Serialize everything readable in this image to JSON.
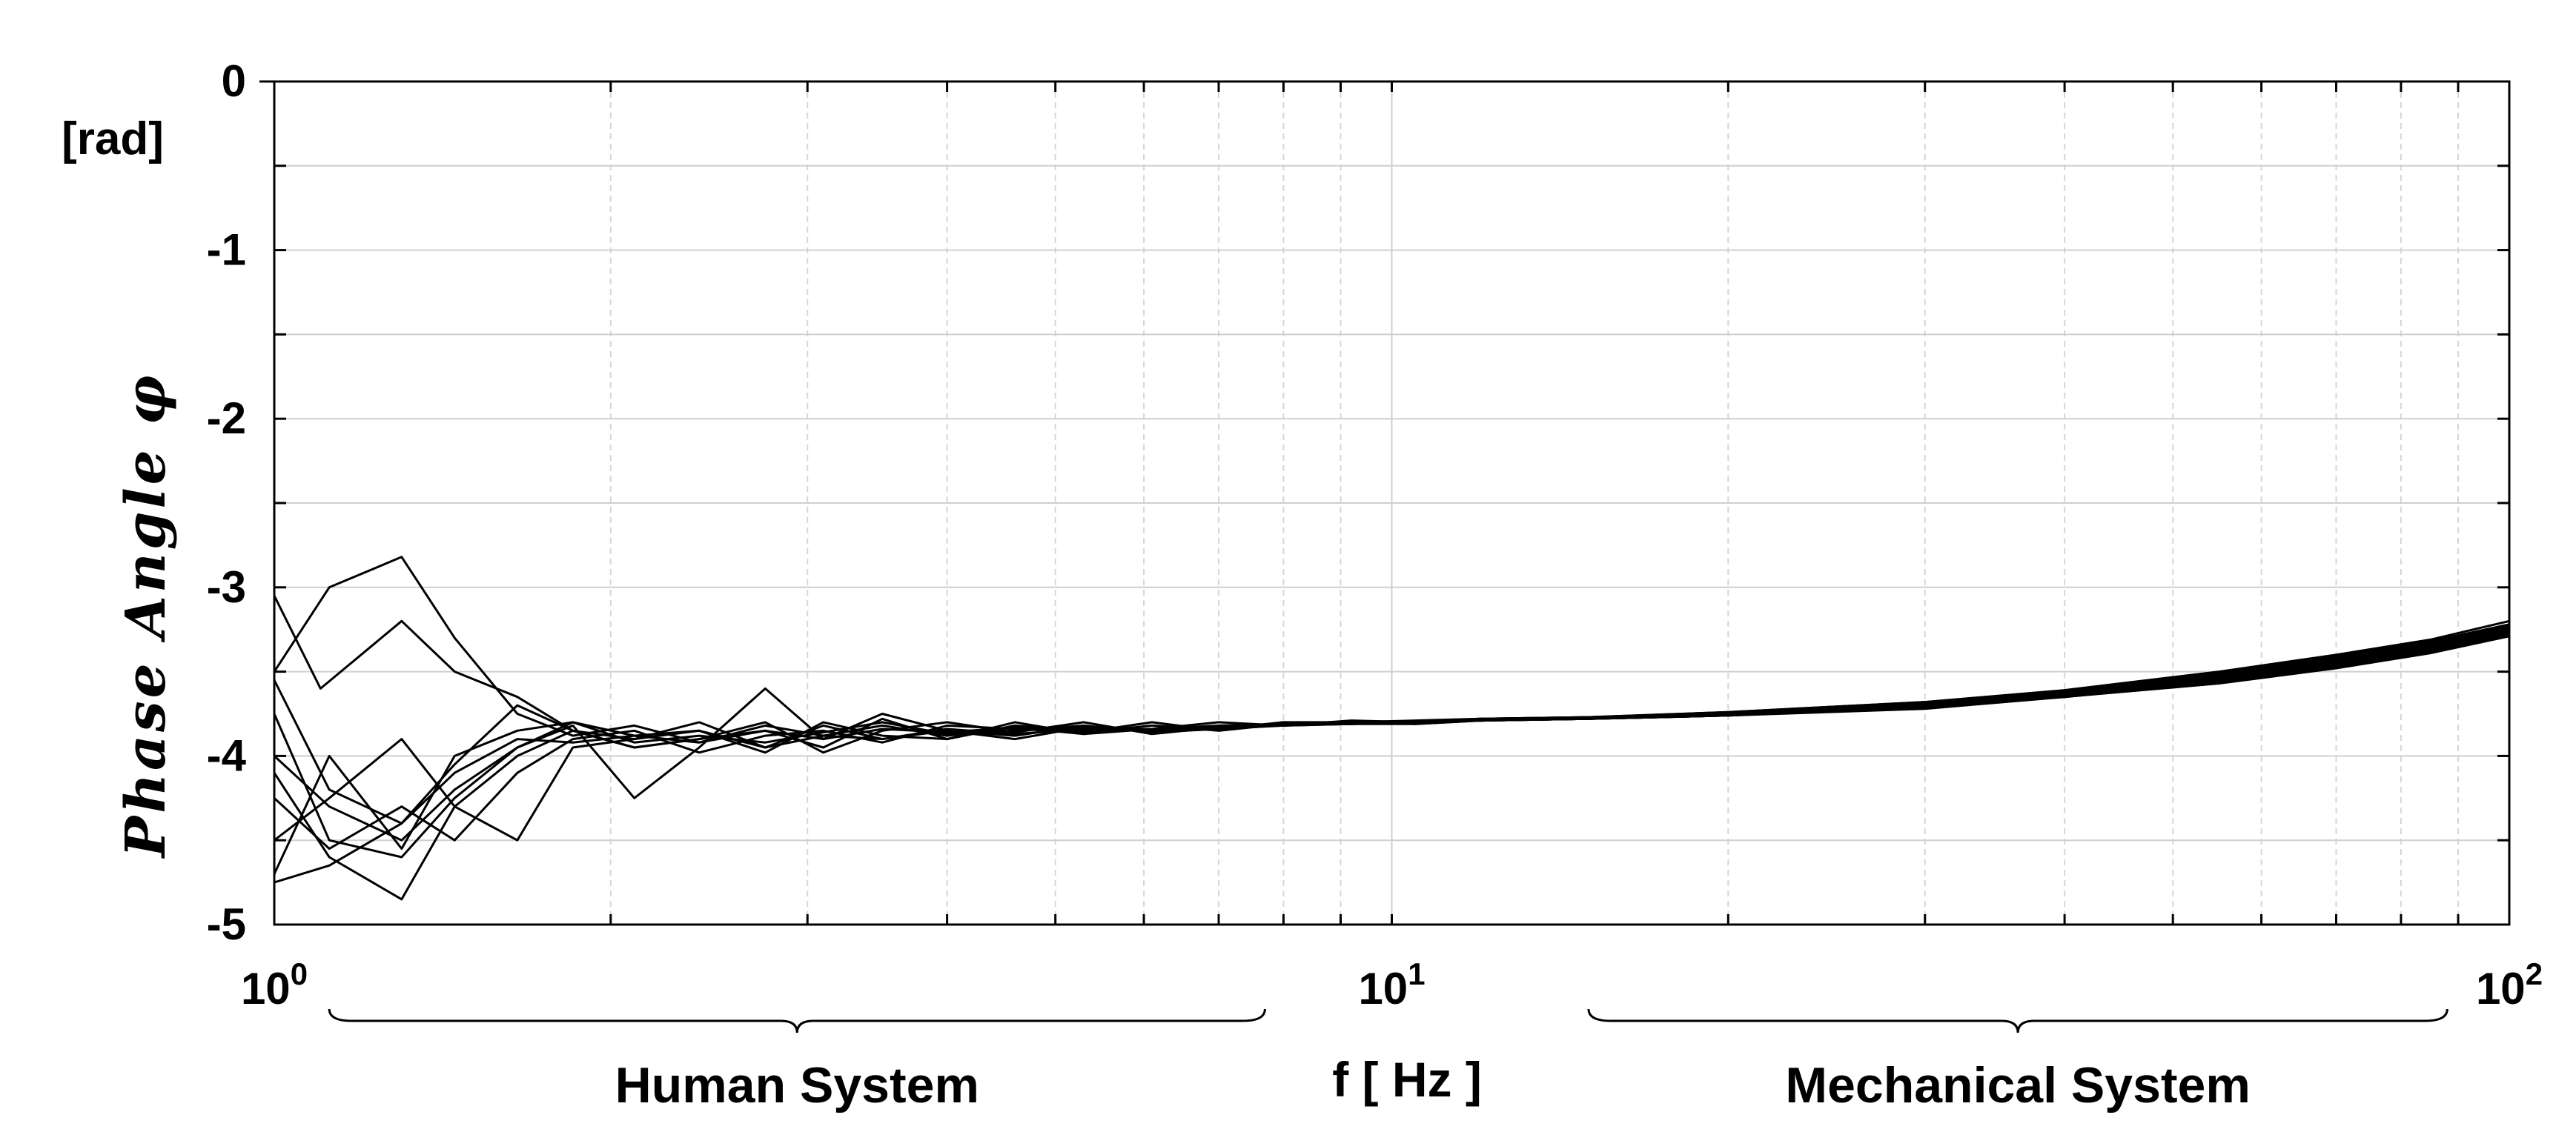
{
  "chart_data": {
    "type": "line",
    "x_scale": "log",
    "xlim": [
      1,
      100
    ],
    "ylim": [
      -5,
      0
    ],
    "grid": true,
    "ylabel": "Phase Angle φ",
    "yunit": "[rad]",
    "xlabel": "f  [ Hz ]",
    "x_ticks": [
      {
        "value": 1,
        "base": "10",
        "exp": "0"
      },
      {
        "value": 10,
        "base": "10",
        "exp": "1"
      },
      {
        "value": 100,
        "base": "10",
        "exp": "2"
      }
    ],
    "y_ticks": [
      0,
      -1,
      -2,
      -3,
      -4,
      -5
    ],
    "annotations": [
      {
        "text": "Human System",
        "x_range": [
          1.12,
          7.7
        ]
      },
      {
        "text": "Mechanical System",
        "x_range": [
          15,
          88
        ]
      }
    ],
    "series": [
      {
        "x": [
          1,
          1.1,
          1.3,
          1.45,
          1.65,
          1.85,
          2.1,
          2.4,
          2.75,
          3.1,
          3.5,
          4,
          4.6,
          5.3,
          6.1,
          7,
          8,
          9.2,
          10.5,
          12,
          15,
          20,
          30,
          40,
          55,
          70,
          85,
          100
        ],
        "y": [
          -3.05,
          -3.6,
          -3.2,
          -3.5,
          -3.65,
          -3.85,
          -3.9,
          -3.8,
          -3.95,
          -3.88,
          -3.82,
          -3.88,
          -3.83,
          -3.86,
          -3.82,
          -3.85,
          -3.8,
          -3.8,
          -3.8,
          -3.78,
          -3.77,
          -3.74,
          -3.68,
          -3.61,
          -3.5,
          -3.4,
          -3.31,
          -3.2
        ]
      },
      {
        "x": [
          1,
          1.12,
          1.3,
          1.45,
          1.65,
          1.85,
          2.1,
          2.4,
          2.75,
          3.1,
          3.5,
          4,
          4.6,
          5.3,
          6.1,
          7,
          8,
          9.2,
          10.5,
          12,
          15,
          20,
          30,
          40,
          55,
          70,
          85,
          100
        ],
        "y": [
          -3.5,
          -3.0,
          -2.82,
          -3.3,
          -3.75,
          -3.88,
          -3.82,
          -3.92,
          -3.85,
          -3.95,
          -3.78,
          -3.9,
          -3.8,
          -3.87,
          -3.84,
          -3.8,
          -3.82,
          -3.79,
          -3.8,
          -3.78,
          -3.77,
          -3.74,
          -3.68,
          -3.62,
          -3.51,
          -3.41,
          -3.32,
          -3.22
        ]
      },
      {
        "x": [
          1,
          1.12,
          1.3,
          1.45,
          1.65,
          1.85,
          2.1,
          2.4,
          2.75,
          3.1,
          3.5,
          4,
          4.6,
          5.3,
          6.1,
          7,
          8,
          9.2,
          10.5,
          12,
          15,
          20,
          30,
          40,
          55,
          70,
          85,
          100
        ],
        "y": [
          -3.55,
          -4.2,
          -4.4,
          -4.1,
          -3.9,
          -3.92,
          -3.88,
          -3.85,
          -3.95,
          -3.82,
          -3.9,
          -3.85,
          -3.88,
          -3.82,
          -3.86,
          -3.84,
          -3.8,
          -3.81,
          -3.8,
          -3.79,
          -3.77,
          -3.75,
          -3.69,
          -3.62,
          -3.52,
          -3.42,
          -3.33,
          -3.23
        ]
      },
      {
        "x": [
          1,
          1.12,
          1.3,
          1.45,
          1.65,
          1.85,
          2.1,
          2.4,
          2.75,
          3.1,
          3.5,
          4,
          4.6,
          5.3,
          6.1,
          7,
          8,
          9.2,
          10.5,
          12,
          15,
          20,
          30,
          40,
          55,
          70,
          85,
          100
        ],
        "y": [
          -4.0,
          -4.3,
          -4.5,
          -4.2,
          -3.95,
          -3.82,
          -4.25,
          -3.95,
          -3.6,
          -3.9,
          -3.75,
          -3.85,
          -3.9,
          -3.83,
          -3.85,
          -3.82,
          -3.81,
          -3.8,
          -3.79,
          -3.78,
          -3.77,
          -3.75,
          -3.69,
          -3.63,
          -3.53,
          -3.43,
          -3.34,
          -3.24
        ]
      },
      {
        "x": [
          1,
          1.12,
          1.3,
          1.45,
          1.65,
          1.85,
          2.1,
          2.4,
          2.75,
          3.1,
          3.5,
          4,
          4.6,
          5.3,
          6.1,
          7,
          8,
          9.2,
          10.5,
          12,
          15,
          20,
          30,
          40,
          55,
          70,
          85,
          100
        ],
        "y": [
          -4.1,
          -4.6,
          -4.85,
          -4.3,
          -4.0,
          -3.85,
          -3.95,
          -3.9,
          -3.8,
          -3.98,
          -3.85,
          -3.8,
          -3.86,
          -3.8,
          -3.87,
          -3.83,
          -3.82,
          -3.8,
          -3.8,
          -3.79,
          -3.78,
          -3.75,
          -3.7,
          -3.63,
          -3.54,
          -3.44,
          -3.35,
          -3.25
        ]
      },
      {
        "x": [
          1,
          1.12,
          1.3,
          1.45,
          1.65,
          1.85,
          2.1,
          2.4,
          2.75,
          3.1,
          3.5,
          4,
          4.6,
          5.3,
          6.1,
          7,
          8,
          9.2,
          10.5,
          12,
          15,
          20,
          30,
          40,
          55,
          70,
          85,
          100
        ],
        "y": [
          -4.25,
          -4.55,
          -4.3,
          -4.5,
          -4.1,
          -3.9,
          -3.85,
          -3.98,
          -3.88,
          -3.85,
          -3.92,
          -3.82,
          -3.84,
          -3.86,
          -3.8,
          -3.85,
          -3.81,
          -3.8,
          -3.81,
          -3.79,
          -3.78,
          -3.76,
          -3.7,
          -3.64,
          -3.55,
          -3.45,
          -3.36,
          -3.26
        ]
      },
      {
        "x": [
          1,
          1.12,
          1.3,
          1.45,
          1.65,
          1.85,
          2.1,
          2.4,
          2.75,
          3.1,
          3.5,
          4,
          4.6,
          5.3,
          6.1,
          7,
          8,
          9.2,
          10.5,
          12,
          15,
          20,
          30,
          40,
          55,
          70,
          85,
          100
        ],
        "y": [
          -4.5,
          -4.25,
          -3.9,
          -4.3,
          -4.5,
          -3.95,
          -3.9,
          -3.85,
          -3.98,
          -3.8,
          -3.88,
          -3.9,
          -3.82,
          -3.85,
          -3.84,
          -3.82,
          -3.82,
          -3.81,
          -3.8,
          -3.79,
          -3.78,
          -3.76,
          -3.71,
          -3.64,
          -3.55,
          -3.46,
          -3.37,
          -3.27
        ]
      },
      {
        "x": [
          1,
          1.12,
          1.3,
          1.45,
          1.65,
          1.85,
          2.1,
          2.4,
          2.75,
          3.1,
          3.5,
          4,
          4.6,
          5.3,
          6.1,
          7,
          8,
          9.2,
          10.5,
          12,
          15,
          20,
          30,
          40,
          55,
          70,
          85,
          100
        ],
        "y": [
          -4.7,
          -4.0,
          -4.55,
          -4.0,
          -3.85,
          -3.8,
          -3.92,
          -3.88,
          -3.92,
          -3.86,
          -3.8,
          -3.87,
          -3.85,
          -3.82,
          -3.86,
          -3.83,
          -3.81,
          -3.8,
          -3.8,
          -3.79,
          -3.78,
          -3.76,
          -3.71,
          -3.65,
          -3.56,
          -3.47,
          -3.38,
          -3.28
        ]
      },
      {
        "x": [
          1,
          1.12,
          1.3,
          1.45,
          1.65,
          1.85,
          2.1,
          2.4,
          2.75,
          3.1,
          3.5,
          4,
          4.6,
          5.3,
          6.1,
          7,
          8,
          9.2,
          10.5,
          12,
          15,
          20,
          30,
          40,
          55,
          70,
          85,
          100
        ],
        "y": [
          -4.75,
          -4.65,
          -4.4,
          -4.05,
          -3.7,
          -3.85,
          -3.95,
          -3.9,
          -3.85,
          -3.9,
          -3.84,
          -3.86,
          -3.83,
          -3.87,
          -3.82,
          -3.84,
          -3.82,
          -3.81,
          -3.81,
          -3.79,
          -3.78,
          -3.76,
          -3.72,
          -3.65,
          -3.57,
          -3.48,
          -3.39,
          -3.29
        ]
      },
      {
        "x": [
          1,
          1.12,
          1.3,
          1.45,
          1.65,
          1.85,
          2.1,
          2.4,
          2.75,
          3.1,
          3.5,
          4,
          4.6,
          5.3,
          6.1,
          7,
          8,
          9.2,
          10.5,
          12,
          15,
          20,
          30,
          40,
          55,
          70,
          85,
          100
        ],
        "y": [
          -3.75,
          -4.5,
          -4.6,
          -4.25,
          -3.95,
          -3.8,
          -3.88,
          -3.92,
          -3.82,
          -3.88,
          -3.9,
          -3.84,
          -3.87,
          -3.84,
          -3.85,
          -3.83,
          -3.81,
          -3.81,
          -3.8,
          -3.79,
          -3.78,
          -3.76,
          -3.71,
          -3.65,
          -3.56,
          -3.47,
          -3.38,
          -3.28
        ]
      }
    ]
  }
}
